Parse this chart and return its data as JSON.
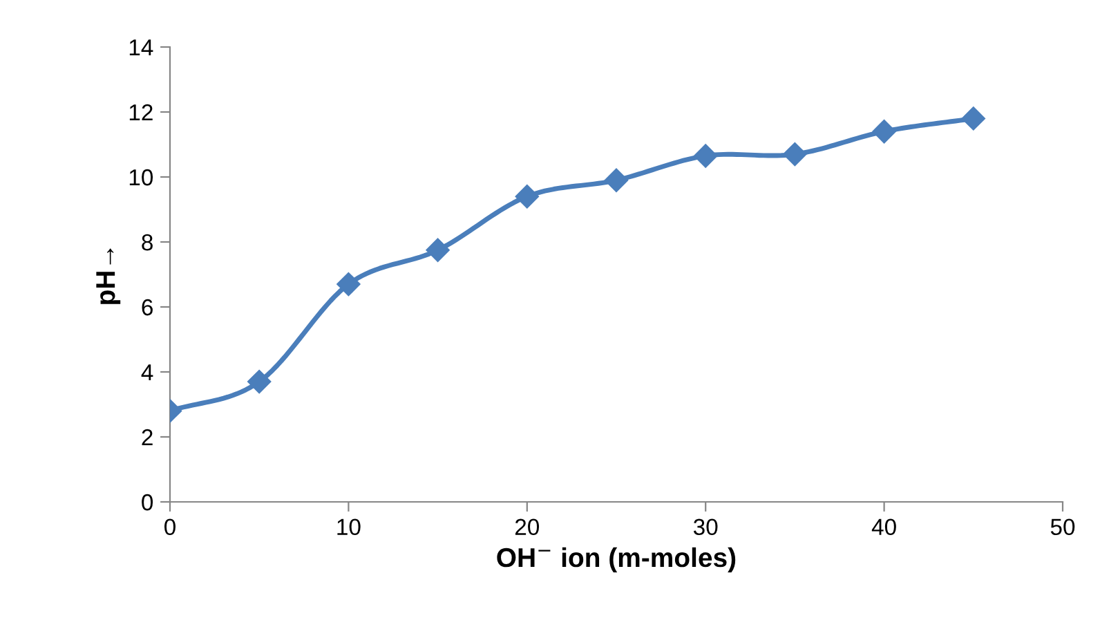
{
  "chart_data": {
    "type": "line",
    "xlabel": "OH$^{−}$ ion (m-moles)",
    "ylabel": "pH→",
    "x": [
      0,
      5,
      10,
      15,
      20,
      25,
      30,
      35,
      40,
      45
    ],
    "series": [
      {
        "color": "#4a7ebb",
        "values": [
          2.8,
          3.7,
          6.7,
          7.75,
          9.4,
          9.9,
          10.65,
          10.7,
          11.4,
          11.8
        ]
      }
    ],
    "xlim": [
      0,
      50
    ],
    "xticks": [
      0,
      10,
      20,
      30,
      40,
      50
    ],
    "ylim": [
      0,
      14
    ],
    "yticks": [
      0,
      2,
      4,
      6,
      8,
      10,
      12,
      14
    ],
    "grid": false,
    "marker": "diamond",
    "line_style": "solid"
  }
}
